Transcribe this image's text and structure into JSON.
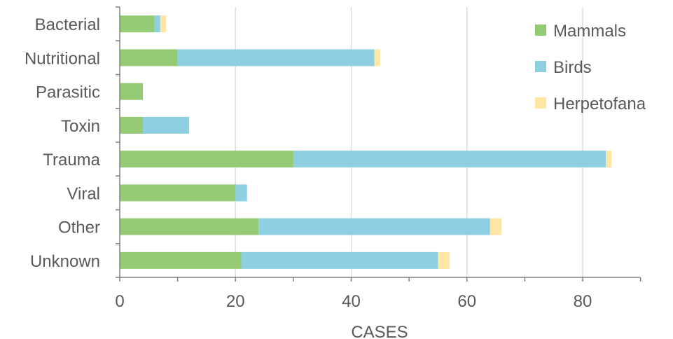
{
  "chart_data": {
    "type": "bar",
    "orientation": "horizontal",
    "stacked": true,
    "title": "",
    "xlabel": "CASES",
    "ylabel": "",
    "xlim": [
      0,
      90
    ],
    "xticks": [
      0,
      20,
      40,
      60,
      80
    ],
    "grid": "vertical",
    "legend_position": "top-right",
    "categories": [
      "Bacterial",
      "Nutritional",
      "Parasitic",
      "Toxin",
      "Trauma",
      "Viral",
      "Other",
      "Unknown"
    ],
    "series": [
      {
        "name": "Mammals",
        "color": "#96cb76",
        "values": [
          6,
          10,
          4,
          4,
          30,
          20,
          24,
          21
        ]
      },
      {
        "name": "Birds",
        "color": "#8fcfe2",
        "values": [
          1,
          34,
          0,
          8,
          54,
          2,
          40,
          34
        ]
      },
      {
        "name": "Herpetofana",
        "color": "#fde6a6",
        "values": [
          1,
          1,
          0,
          0,
          1,
          0,
          2,
          2
        ]
      }
    ]
  }
}
